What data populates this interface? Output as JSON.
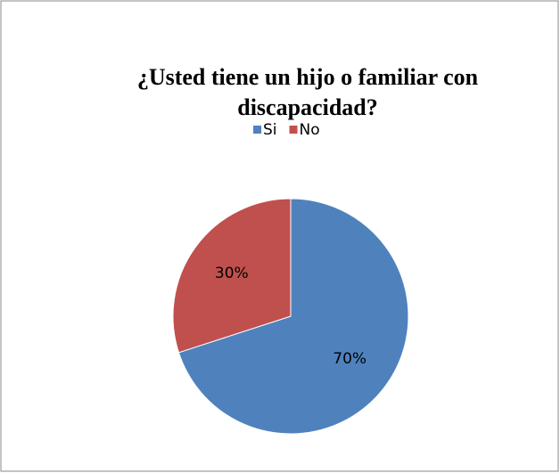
{
  "chart_data": {
    "type": "pie",
    "title": "¿Usted tiene un hijo o familiar con discapacidad?",
    "categories": [
      "Si",
      "No"
    ],
    "values": [
      70,
      30
    ],
    "value_labels": [
      "70%",
      "30%"
    ],
    "colors": [
      "#4f81bd",
      "#c0504d"
    ],
    "legend": "top"
  }
}
